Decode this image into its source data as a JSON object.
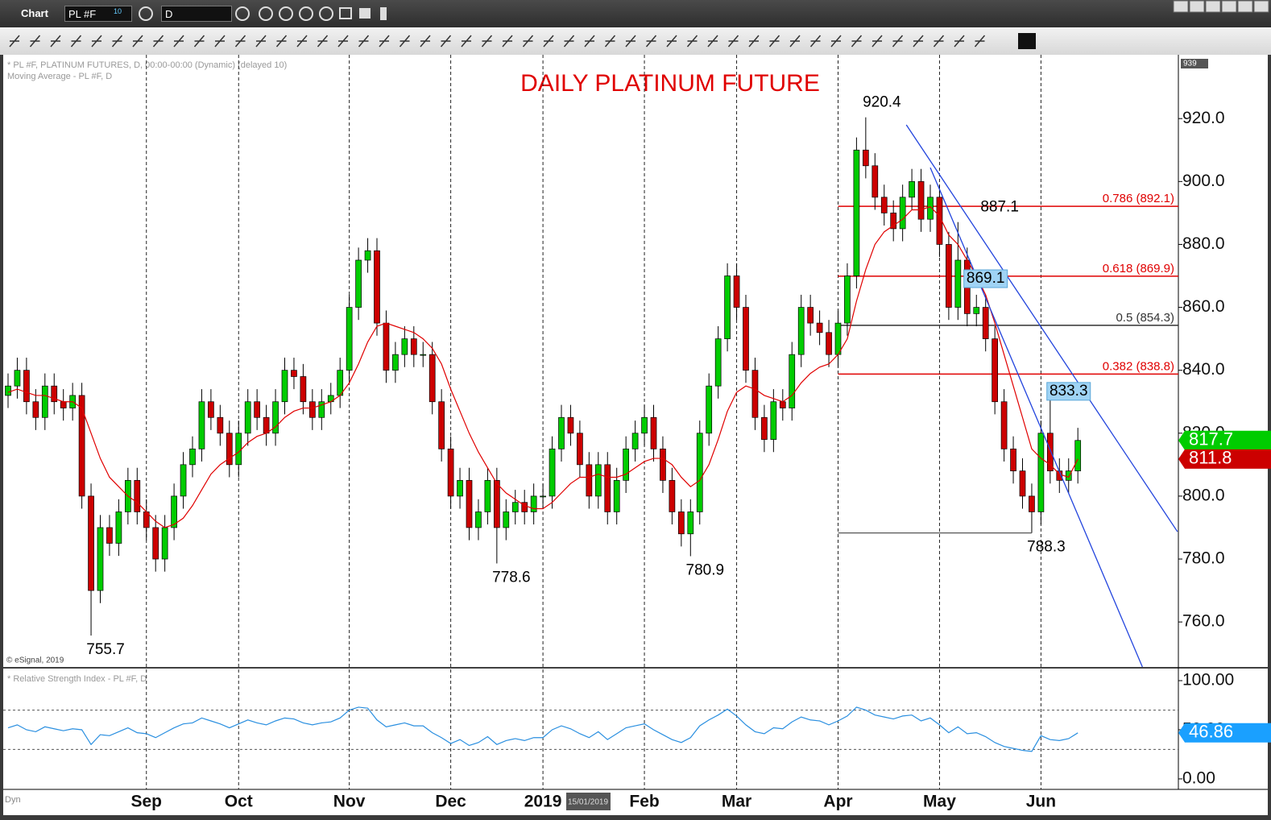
{
  "toolbar": {
    "app": "Chart",
    "symbol": "PL #F",
    "symbol_badge": "10",
    "interval": "D"
  },
  "chart_data": [
    {
      "type": "candlestick",
      "title": "DAILY PLATINUM FUTURE",
      "subtitle": "* PL #F, PLATINUM FUTURES, D, 00:00-00:00 (Dynamic) (delayed 10)",
      "credit": "© eSignal, 2019",
      "cursor_label": "15/01/2019",
      "categories": [
        null,
        null,
        null,
        null,
        null,
        null,
        null,
        null,
        null,
        null,
        null,
        null,
        null,
        null,
        null,
        "Sep",
        null,
        null,
        null,
        null,
        null,
        null,
        null,
        null,
        null,
        "Oct",
        null,
        null,
        null,
        null,
        null,
        null,
        null,
        null,
        null,
        null,
        null,
        "Nov",
        null,
        null,
        null,
        null,
        null,
        null,
        null,
        null,
        null,
        null,
        "Dec",
        null,
        null,
        null,
        null,
        null,
        null,
        null,
        null,
        null,
        "2019",
        null,
        null,
        null,
        null,
        null,
        null,
        null,
        null,
        null,
        null,
        "Feb",
        null,
        null,
        null,
        null,
        null,
        null,
        null,
        null,
        null,
        "Mar",
        null,
        null,
        null,
        null,
        null,
        null,
        null,
        null,
        null,
        null,
        "Apr",
        null,
        null,
        null,
        null,
        null,
        null,
        null,
        null,
        null,
        null,
        "May",
        null,
        null,
        null,
        null,
        null,
        null,
        null,
        null,
        null,
        null,
        "Jun",
        null,
        null,
        null,
        null
      ],
      "open": [
        832,
        835,
        840,
        830,
        825,
        835,
        830,
        828,
        832,
        800,
        770,
        790,
        785,
        795,
        805,
        795,
        790,
        780,
        790,
        800,
        810,
        815,
        830,
        825,
        820,
        810,
        820,
        830,
        825,
        820,
        830,
        840,
        838,
        830,
        825,
        830,
        832,
        840,
        860,
        875,
        878,
        855,
        840,
        845,
        850,
        845,
        845,
        830,
        815,
        800,
        805,
        790,
        795,
        805,
        790,
        795,
        798,
        795,
        800,
        800,
        815,
        825,
        820,
        810,
        800,
        810,
        795,
        805,
        815,
        820,
        825,
        815,
        805,
        795,
        788,
        795,
        820,
        835,
        850,
        870,
        860,
        840,
        825,
        818,
        830,
        828,
        845,
        860,
        855,
        852,
        845,
        855,
        870,
        910,
        905,
        895,
        890,
        885,
        895,
        900,
        888,
        895,
        880,
        860,
        875,
        858,
        860,
        850,
        830,
        815,
        808,
        800,
        795,
        820,
        808,
        805,
        808
      ],
      "high": [
        839,
        844,
        844,
        834,
        839,
        839,
        834,
        836,
        836,
        804,
        794,
        794,
        799,
        809,
        809,
        799,
        794,
        794,
        804,
        814,
        819,
        834,
        834,
        829,
        824,
        824,
        834,
        834,
        829,
        834,
        844,
        844,
        842,
        834,
        834,
        836,
        844,
        864,
        879,
        882,
        882,
        859,
        849,
        854,
        854,
        849,
        849,
        834,
        819,
        809,
        809,
        799,
        809,
        809,
        799,
        802,
        802,
        804,
        804,
        819,
        829,
        829,
        824,
        814,
        814,
        814,
        809,
        819,
        824,
        829,
        829,
        819,
        809,
        799,
        799,
        824,
        839,
        854,
        874,
        874,
        864,
        844,
        829,
        834,
        834,
        849,
        864,
        864,
        859,
        856,
        859,
        874,
        914,
        920.4,
        909,
        899,
        894,
        899,
        904,
        904,
        899,
        899,
        884,
        887.1,
        879,
        864,
        864,
        854,
        834,
        819,
        812,
        804,
        824,
        833.3,
        812,
        812,
        821.7
      ],
      "low": [
        828,
        831,
        826,
        821,
        821,
        826,
        824,
        824,
        796,
        755.7,
        766,
        781,
        781,
        791,
        791,
        786,
        776,
        776,
        786,
        796,
        806,
        811,
        821,
        816,
        806,
        806,
        816,
        821,
        816,
        816,
        826,
        834,
        826,
        821,
        821,
        826,
        828,
        836,
        856,
        871,
        851,
        836,
        836,
        841,
        841,
        841,
        826,
        811,
        796,
        796,
        786,
        786,
        791,
        778.6,
        786,
        791,
        791,
        791,
        796,
        796,
        811,
        816,
        806,
        796,
        796,
        791,
        791,
        801,
        811,
        816,
        811,
        801,
        791,
        784,
        780.9,
        791,
        816,
        831,
        846,
        856,
        836,
        821,
        814,
        814,
        824,
        824,
        841,
        851,
        848,
        841,
        841,
        851,
        866,
        901,
        891,
        886,
        881,
        881,
        891,
        884,
        884,
        876,
        856,
        856,
        854,
        854,
        846,
        826,
        811,
        804,
        796,
        788.3,
        791,
        804,
        801,
        801,
        804
      ],
      "close": [
        835,
        840,
        830,
        825,
        835,
        830,
        828,
        832,
        800,
        770,
        790,
        785,
        795,
        805,
        795,
        790,
        780,
        790,
        800,
        810,
        815,
        830,
        825,
        820,
        810,
        820,
        830,
        825,
        820,
        830,
        840,
        838,
        830,
        825,
        830,
        832,
        840,
        860,
        875,
        878,
        855,
        840,
        845,
        850,
        845,
        845,
        830,
        815,
        800,
        805,
        790,
        795,
        805,
        790,
        795,
        798,
        795,
        800,
        800,
        815,
        825,
        820,
        810,
        800,
        810,
        795,
        805,
        815,
        820,
        825,
        815,
        805,
        795,
        788,
        795,
        820,
        835,
        850,
        870,
        860,
        840,
        825,
        818,
        830,
        828,
        845,
        860,
        855,
        852,
        845,
        855,
        870,
        910,
        905,
        895,
        890,
        885,
        895,
        900,
        888,
        895,
        880,
        860,
        875,
        858,
        860,
        850,
        830,
        815,
        808,
        800,
        795,
        820,
        808,
        805,
        808,
        817.7
      ],
      "up_color": "#00cc00",
      "down_color": "#cc0000",
      "series": [
        {
          "name": "Moving Average - PL #F, D",
          "color": "#e00000",
          "values": [
            833,
            834,
            833,
            832,
            832,
            831,
            830,
            830,
            828,
            820,
            812,
            806,
            803,
            800,
            798,
            795,
            792,
            790,
            791,
            793,
            797,
            802,
            807,
            810,
            812,
            814,
            817,
            819,
            820,
            822,
            825,
            827,
            828,
            828,
            829,
            830,
            832,
            836,
            842,
            849,
            854,
            855,
            854,
            853,
            852,
            850,
            847,
            842,
            834,
            827,
            820,
            814,
            809,
            804,
            801,
            799,
            797,
            796,
            796,
            798,
            801,
            804,
            806,
            806,
            807,
            806,
            806,
            807,
            809,
            811,
            812,
            812,
            810,
            806,
            803,
            805,
            810,
            818,
            827,
            833,
            835,
            834,
            832,
            831,
            830,
            832,
            836,
            839,
            841,
            842,
            845,
            850,
            862,
            872,
            880,
            884,
            886,
            888,
            891,
            891,
            892,
            889,
            883,
            880,
            875,
            870,
            864,
            855,
            845,
            835,
            825,
            815,
            812,
            810,
            807,
            806,
            811.8
          ]
        }
      ],
      "ylim": [
        745.7,
        939.0
      ],
      "yticks": [
        {
          "value": 760,
          "label": "760.0"
        },
        {
          "value": 780,
          "label": "780.0"
        },
        {
          "value": 800,
          "label": "800.0"
        },
        {
          "value": 820,
          "label": "820.0"
        },
        {
          "value": 840,
          "label": "840.0"
        },
        {
          "value": 860,
          "label": "860.0"
        },
        {
          "value": 880,
          "label": "880.0"
        },
        {
          "value": 900,
          "label": "900.0"
        },
        {
          "value": 920,
          "label": "920.0"
        }
      ],
      "fib_levels": [
        {
          "label": "0.786 (892.1)",
          "value": 892.1,
          "color": "#e00000",
          "from_index": 90
        },
        {
          "label": "0.618 (869.9)",
          "value": 869.9,
          "color": "#e00000",
          "from_index": 90
        },
        {
          "label": "0.5 (854.3)",
          "value": 854.3,
          "color": "#333333",
          "from_index": 90
        },
        {
          "label": "0.382 (838.8)",
          "value": 838.8,
          "color": "#e00000",
          "from_index": 90
        }
      ],
      "trendlines": [
        {
          "from": [
            97.4,
            918.0
          ],
          "to": [
            126.8,
            788.7
          ],
          "color": "#2244dd"
        },
        {
          "from": [
            100,
            904.4
          ],
          "to": [
            123,
            745.7
          ],
          "color": "#2244dd"
        },
        {
          "from": [
            90,
            788.3
          ],
          "to": [
            111,
            788.3
          ],
          "color": "#555555"
        }
      ],
      "annotations": [
        {
          "value": 755.7,
          "index": 9,
          "side": "below"
        },
        {
          "value": 778.6,
          "index": 53,
          "side": "below"
        },
        {
          "value": 780.9,
          "index": 74,
          "side": "below"
        },
        {
          "value": 920.4,
          "index": 93,
          "side": "above"
        },
        {
          "value": 887.1,
          "index": 103,
          "side": "right"
        },
        {
          "value": 788.3,
          "index": 111,
          "side": "below"
        },
        {
          "value": 869.1,
          "index": 106,
          "side": "boxed"
        },
        {
          "value": 833.3,
          "index": 115,
          "side": "boxed"
        }
      ]
    },
    {
      "type": "line",
      "subtitle": "* Relative Strength Index - PL #F, D",
      "footer": "Dyn",
      "series": [
        {
          "color": "#2a8fe0",
          "tag_color": "#1aa0ff",
          "values": [
            52,
            55,
            50,
            48,
            53,
            51,
            49,
            51,
            50,
            35,
            45,
            44,
            48,
            52,
            47,
            46,
            42,
            47,
            52,
            56,
            57,
            62,
            59,
            56,
            52,
            56,
            60,
            57,
            55,
            59,
            62,
            61,
            57,
            55,
            57,
            58,
            62,
            70,
            73,
            72,
            60,
            53,
            55,
            57,
            54,
            54,
            47,
            42,
            36,
            40,
            34,
            37,
            43,
            35,
            39,
            41,
            39,
            42,
            42,
            50,
            54,
            51,
            46,
            42,
            48,
            40,
            46,
            52,
            54,
            56,
            50,
            45,
            40,
            37,
            42,
            54,
            60,
            65,
            71,
            64,
            55,
            48,
            46,
            52,
            51,
            58,
            63,
            60,
            59,
            55,
            59,
            64,
            73,
            70,
            65,
            63,
            61,
            64,
            65,
            59,
            62,
            55,
            47,
            53,
            46,
            47,
            43,
            37,
            33,
            31,
            29,
            28,
            44,
            40,
            39,
            41,
            46.86
          ]
        }
      ],
      "ylim": [
        -10.7,
        112.3
      ],
      "yticks": [
        {
          "value": 0,
          "label": "0.00"
        },
        {
          "value": 50,
          "label": "50.00"
        },
        {
          "value": 100,
          "label": "100.00"
        }
      ],
      "levels": [
        70,
        30
      ]
    }
  ]
}
